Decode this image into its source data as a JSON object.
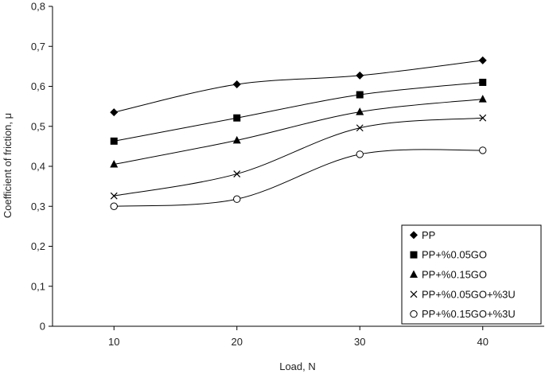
{
  "chart_data": {
    "type": "line",
    "title": "",
    "xlabel": "Load, N",
    "ylabel": "Coefficient of friction, μ",
    "x": [
      10,
      20,
      30,
      40
    ],
    "x_ticks": [
      "10",
      "20",
      "30",
      "40"
    ],
    "xlim": [
      5,
      45
    ],
    "y_ticks": [
      "0",
      "0,1",
      "0,2",
      "0,3",
      "0,4",
      "0,5",
      "0,6",
      "0,7",
      "0,8"
    ],
    "ylim": [
      0,
      0.8
    ],
    "grid": false,
    "legend_position": "bottom-right",
    "series": [
      {
        "name": "PP",
        "marker": "diamond",
        "values": [
          0.535,
          0.605,
          0.627,
          0.665
        ]
      },
      {
        "name": "PP+%0.05GO",
        "marker": "square",
        "values": [
          0.463,
          0.521,
          0.579,
          0.61
        ]
      },
      {
        "name": "PP+%0.15GO",
        "marker": "triangle",
        "values": [
          0.405,
          0.465,
          0.536,
          0.568
        ]
      },
      {
        "name": "PP+%0.05GO+%3U",
        "marker": "x",
        "values": [
          0.326,
          0.381,
          0.496,
          0.521
        ]
      },
      {
        "name": "PP+%0.15GO+%3U",
        "marker": "circle",
        "values": [
          0.3,
          0.318,
          0.43,
          0.44
        ]
      }
    ]
  }
}
